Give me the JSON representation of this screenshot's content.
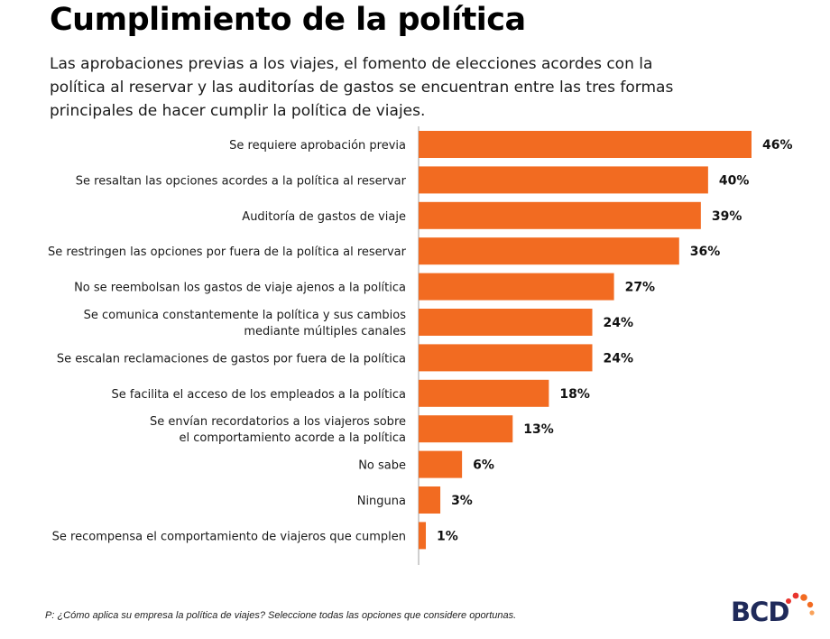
{
  "header": {
    "title": "Cumplimiento de la política",
    "subtitle": "Las aprobaciones previas a los viajes, el fomento de elecciones acordes con la política al reservar y las auditorías de gastos se encuentran entre las tres formas principales de hacer cumplir la política de viajes."
  },
  "chart_data": {
    "type": "bar",
    "orientation": "horizontal",
    "categories": [
      [
        "Se requiere aprobación previa"
      ],
      [
        "Se resaltan las opciones acordes a la política al reservar"
      ],
      [
        "Auditoría de gastos de viaje"
      ],
      [
        "Se restringen las opciones por fuera de la política al reservar"
      ],
      [
        "No se reembolsan los gastos de viaje ajenos a la política"
      ],
      [
        "Se comunica constantemente la política y sus cambios",
        "mediante múltiples canales"
      ],
      [
        "Se escalan reclamaciones de gastos por fuera de la política"
      ],
      [
        "Se facilita el acceso de los empleados a la política"
      ],
      [
        "Se envían recordatorios a los viajeros sobre",
        "el comportamiento acorde a la política"
      ],
      [
        "No sabe"
      ],
      [
        "Ninguna"
      ],
      [
        "Se recompensa el comportamiento de viajeros que cumplen"
      ]
    ],
    "values": [
      46,
      40,
      39,
      36,
      27,
      24,
      24,
      18,
      13,
      6,
      3,
      1
    ],
    "value_labels": [
      "46%",
      "40%",
      "39%",
      "36%",
      "27%",
      "24%",
      "24%",
      "18%",
      "13%",
      "6%",
      "3%",
      "1%"
    ],
    "xlim": [
      0,
      46
    ],
    "bar_color": "#f26b21",
    "grid": false,
    "legend": "none"
  },
  "footer": {
    "note": "P: ¿Cómo aplica su empresa la política de viajes? Seleccione todas las opciones que considere oportunas."
  },
  "logo": {
    "text": "BCD",
    "color": "#1f2a5a",
    "dot_colors": [
      "#e8342e",
      "#f26b21",
      "#f9a25a"
    ]
  }
}
